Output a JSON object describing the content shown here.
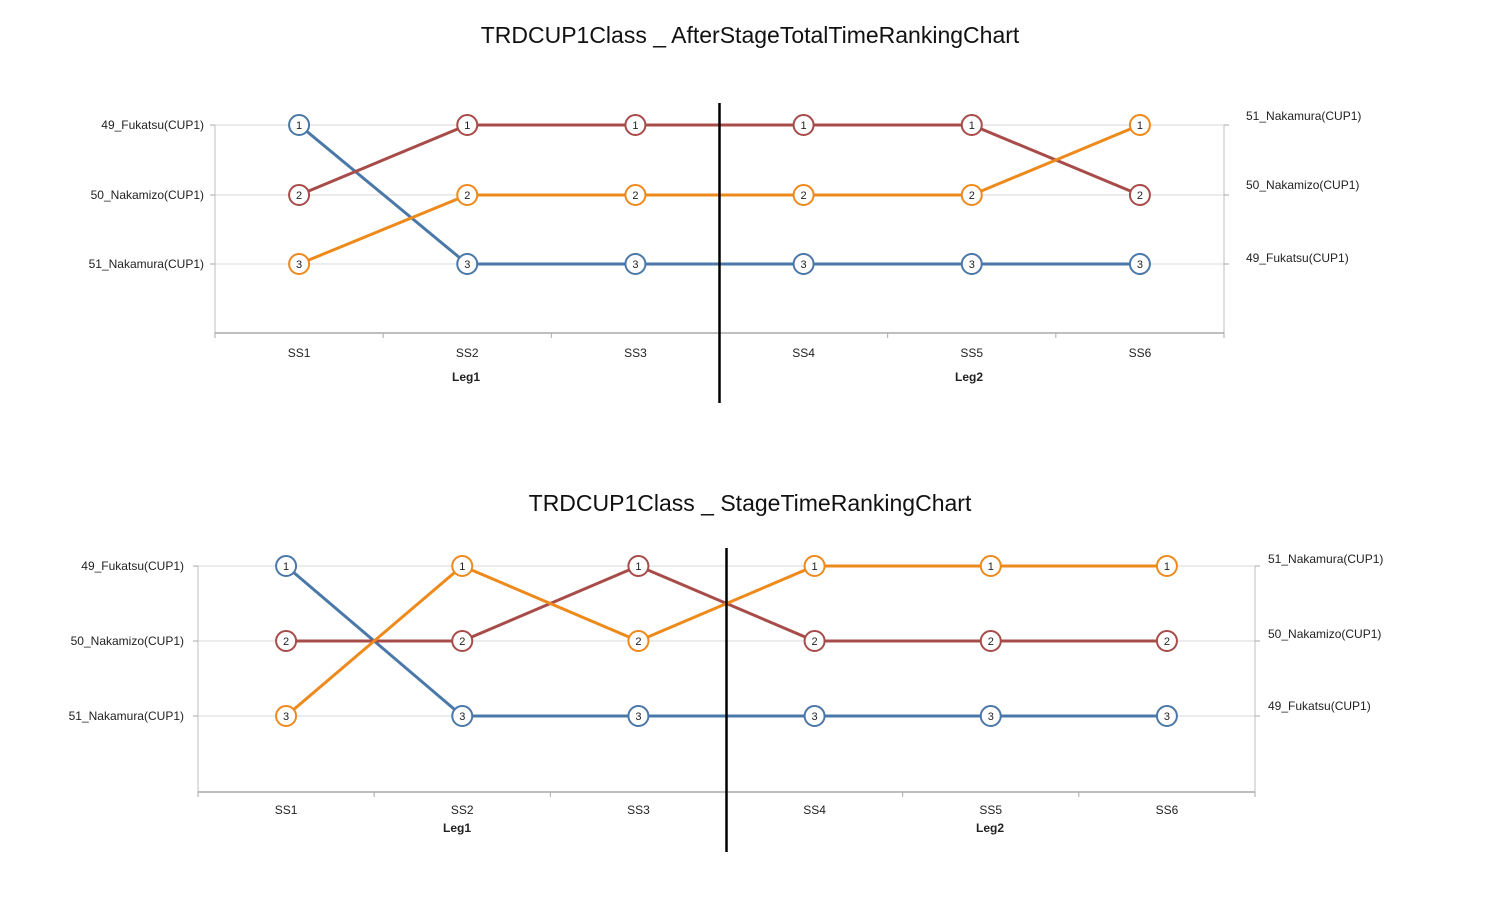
{
  "chart_data": [
    {
      "type": "line",
      "title": "TRDCUP1Class _ AfterStageTotalTimeRankingChart",
      "categories": [
        "SS1",
        "SS2",
        "SS3",
        "SS4",
        "SS5",
        "SS6"
      ],
      "groups": [
        {
          "label": "Leg1",
          "stages": [
            "SS1",
            "SS2",
            "SS3"
          ]
        },
        {
          "label": "Leg2",
          "stages": [
            "SS4",
            "SS5",
            "SS6"
          ]
        }
      ],
      "left_labels": [
        "49_Fukatsu(CUP1)",
        "50_Nakamizo(CUP1)",
        "51_Nakamura(CUP1)"
      ],
      "right_labels": [
        "51_Nakamura(CUP1)",
        "50_Nakamizo(CUP1)",
        "49_Fukatsu(CUP1)"
      ],
      "y_axis": "rank",
      "ylim": [
        1,
        3
      ],
      "grid": true,
      "legend": "none",
      "series": [
        {
          "name": "49_Fukatsu(CUP1)",
          "color": "#4A78A8",
          "values": [
            1,
            3,
            3,
            3,
            3,
            3
          ]
        },
        {
          "name": "50_Nakamizo(CUP1)",
          "color": "#A84C4A",
          "values": [
            2,
            1,
            1,
            1,
            1,
            2
          ]
        },
        {
          "name": "51_Nakamura(CUP1)",
          "color": "#EE8A1C",
          "values": [
            3,
            2,
            2,
            2,
            2,
            1
          ]
        }
      ]
    },
    {
      "type": "line",
      "title": "TRDCUP1Class _ StageTimeRankingChart",
      "categories": [
        "SS1",
        "SS2",
        "SS3",
        "SS4",
        "SS5",
        "SS6"
      ],
      "groups": [
        {
          "label": "Leg1",
          "stages": [
            "SS1",
            "SS2",
            "SS3"
          ]
        },
        {
          "label": "Leg2",
          "stages": [
            "SS4",
            "SS5",
            "SS6"
          ]
        }
      ],
      "left_labels": [
        "49_Fukatsu(CUP1)",
        "50_Nakamizo(CUP1)",
        "51_Nakamura(CUP1)"
      ],
      "right_labels": [
        "51_Nakamura(CUP1)",
        "50_Nakamizo(CUP1)",
        "49_Fukatsu(CUP1)"
      ],
      "y_axis": "rank",
      "ylim": [
        1,
        3
      ],
      "grid": true,
      "legend": "none",
      "series": [
        {
          "name": "49_Fukatsu(CUP1)",
          "color": "#4A78A8",
          "values": [
            1,
            3,
            3,
            3,
            3,
            3
          ]
        },
        {
          "name": "50_Nakamizo(CUP1)",
          "color": "#A84C4A",
          "values": [
            2,
            2,
            1,
            2,
            2,
            2
          ]
        },
        {
          "name": "51_Nakamura(CUP1)",
          "color": "#EE8A1C",
          "values": [
            3,
            1,
            2,
            1,
            1,
            1
          ]
        }
      ]
    }
  ]
}
